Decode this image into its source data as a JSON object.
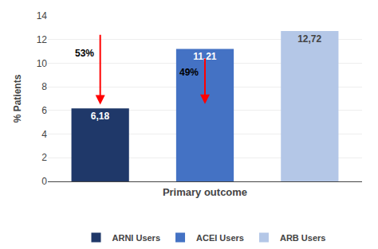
{
  "chart_data": {
    "type": "bar",
    "categories": [
      "ARNI Users",
      "ACEI Users",
      "ARB Users"
    ],
    "values": [
      6.18,
      11.21,
      12.72
    ],
    "value_labels": [
      "6,18",
      "11,21",
      "12,72"
    ],
    "data_labels": true,
    "colors": [
      "#1f3869",
      "#4472c4",
      "#b4c7e7"
    ],
    "xlabel": "Primary outcome",
    "ylabel": "% Patients",
    "ylim": [
      0,
      14
    ],
    "yticks": [
      0,
      2,
      4,
      6,
      8,
      10,
      12,
      14
    ],
    "grid": true,
    "legend": "bottom",
    "tick_labels": "y",
    "annotations": [
      {
        "text": "53%",
        "x": 0,
        "y": 10.2
      },
      {
        "text": "49%",
        "x": 1,
        "y": 8.6
      }
    ],
    "arrows": [
      {
        "x": 0,
        "y_start": 12.5,
        "y_end": 6.5,
        "color": "red"
      },
      {
        "x": 1,
        "y_start": 10.5,
        "y_end": 6.55,
        "color": "red"
      }
    ]
  }
}
